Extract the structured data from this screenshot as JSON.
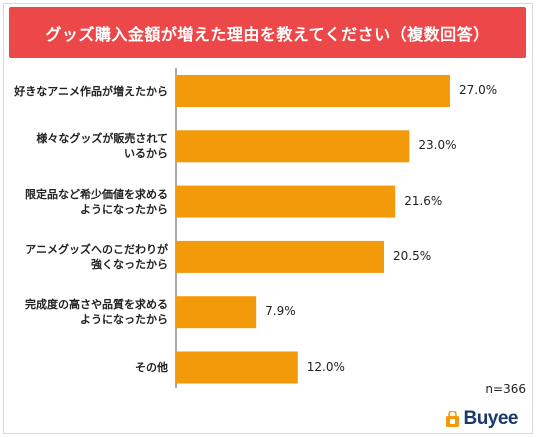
{
  "title": "グッズ購入金額が増えた理由を教えてください（複数回答）",
  "n_label": "n=366",
  "brand": "Buyee",
  "colors": {
    "bar": "#f39a0a",
    "title_bg": "#ec4849",
    "axis": "#555555"
  },
  "chart_data": {
    "type": "bar",
    "orientation": "horizontal",
    "title": "グッズ購入金額が増えた理由を教えてください（複数回答）",
    "categories": [
      [
        "好きなアニメ作品が増えたから"
      ],
      [
        "様々なグッズが販売されて",
        "いるから"
      ],
      [
        "限定品など希少価値を求める",
        "ようになったから"
      ],
      [
        "アニメグッズへのこだわりが",
        "強くなったから"
      ],
      [
        "完成度の高さや品質を求める",
        "ようになったから"
      ],
      [
        "その他"
      ]
    ],
    "values": [
      27.0,
      23.0,
      21.6,
      20.5,
      7.9,
      12.0
    ],
    "value_labels": [
      "27.0%",
      "23.0%",
      "21.6%",
      "20.5%",
      "7.9%",
      "12.0%"
    ],
    "xlim": [
      0,
      30
    ],
    "grid": false,
    "legend": "none"
  }
}
